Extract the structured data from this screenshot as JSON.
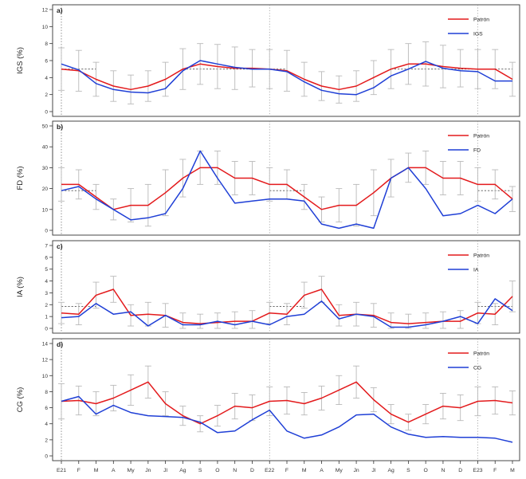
{
  "figure": {
    "x_tick_labels": [
      "E21",
      "F",
      "M",
      "A",
      "My",
      "Jn",
      "Jl",
      "Ag",
      "S",
      "O",
      "N",
      "D",
      "E22",
      "F",
      "M",
      "A",
      "My",
      "Jn",
      "Jl",
      "Ag",
      "S",
      "O",
      "N",
      "D",
      "E23",
      "F",
      "M"
    ],
    "colors": {
      "pattern": "#e31a1c",
      "series": "#1f3fd6",
      "errorbar": "#b9b9b9",
      "reference": "#555555",
      "frame": "#333333"
    }
  },
  "chart_data": [
    {
      "type": "line",
      "panel_label": "a)",
      "ylabel": "IGS (%)",
      "ylim": [
        0,
        12
      ],
      "yticks": [
        0,
        2,
        4,
        6,
        8,
        10,
        12
      ],
      "reference_level": 5,
      "legend_position": "top-right",
      "series": [
        {
          "name": "Patrón",
          "color": "#e31a1c",
          "values": [
            5,
            4.8,
            3.8,
            3.0,
            2.6,
            3.0,
            3.8,
            5.0,
            5.6,
            5.3,
            5.1,
            5.1,
            5.0,
            4.8,
            3.8,
            3.0,
            2.6,
            3.0,
            4.0,
            5.0,
            5.6,
            5.6,
            5.3,
            5.1,
            5.0,
            5.0,
            3.8
          ]
        },
        {
          "name": "IGS",
          "color": "#1f3fd6",
          "values": [
            5.6,
            4.9,
            3.3,
            2.6,
            2.3,
            2.2,
            2.7,
            4.8,
            6.0,
            5.6,
            5.2,
            5.0,
            5.0,
            4.7,
            3.5,
            2.5,
            2.1,
            2.0,
            2.8,
            4.2,
            5.0,
            5.9,
            5.1,
            4.8,
            4.7,
            3.6,
            3.6
          ]
        }
      ],
      "errors": [
        2.5,
        2.4,
        2.0,
        1.8,
        1.7,
        1.8,
        2.0,
        2.4,
        2.4,
        2.6,
        2.5,
        2.2,
        2.3,
        2.4,
        2.0,
        1.7,
        1.6,
        1.8,
        2.0,
        2.3,
        2.4,
        2.6,
        2.5,
        2.2,
        2.3,
        2.3,
        2.0
      ]
    },
    {
      "type": "line",
      "panel_label": "b)",
      "ylabel": "FD (%)",
      "ylim": [
        0,
        50
      ],
      "yticks": [
        0,
        10,
        20,
        30,
        40,
        50
      ],
      "reference_level": 19,
      "legend_position": "top-right",
      "series": [
        {
          "name": "Patrón",
          "color": "#e31a1c",
          "values": [
            22,
            22,
            16,
            10,
            12,
            12,
            18,
            25,
            30,
            30,
            25,
            25,
            22,
            22,
            16,
            10,
            12,
            12,
            18,
            25,
            30,
            30,
            25,
            25,
            22,
            22,
            15
          ]
        },
        {
          "name": "FD",
          "color": "#1f3fd6",
          "values": [
            19,
            21,
            15,
            10,
            5,
            6,
            8,
            20,
            38,
            25,
            13,
            14,
            15,
            15,
            14,
            3,
            1,
            3,
            1,
            25,
            30,
            20,
            7,
            8,
            12,
            8,
            15
          ]
        }
      ],
      "errors": [
        8,
        7,
        6,
        5,
        8,
        10,
        11,
        9,
        8,
        8,
        8,
        8,
        8,
        7,
        6,
        6,
        8,
        10,
        11,
        9,
        7,
        8,
        8,
        8,
        8,
        7,
        6
      ]
    },
    {
      "type": "line",
      "panel_label": "c)",
      "ylabel": "IA (%)",
      "ylim": [
        0,
        7
      ],
      "yticks": [
        0,
        1,
        2,
        3,
        4,
        5,
        6,
        7
      ],
      "reference_level": 1.85,
      "legend_position": "top-right",
      "series": [
        {
          "name": "Patrón",
          "color": "#e31a1c",
          "values": [
            1.3,
            1.2,
            2.8,
            3.3,
            1.1,
            1.2,
            1.1,
            0.5,
            0.4,
            0.5,
            0.6,
            0.6,
            1.3,
            1.2,
            2.8,
            3.3,
            1.1,
            1.2,
            1.1,
            0.5,
            0.4,
            0.5,
            0.6,
            0.6,
            1.3,
            1.2,
            2.7
          ]
        },
        {
          "name": "IA",
          "color": "#1f3fd6",
          "values": [
            0.9,
            1.0,
            2.1,
            1.2,
            1.4,
            0.2,
            1.1,
            0.3,
            0.3,
            0.6,
            0.3,
            0.6,
            0.3,
            1.0,
            1.2,
            2.3,
            0.8,
            1.2,
            1.0,
            0.1,
            0.1,
            0.3,
            0.6,
            1.0,
            0.4,
            2.5,
            1.5
          ]
        }
      ],
      "errors": [
        0.9,
        0.9,
        1.1,
        1.1,
        0.9,
        1.0,
        1.0,
        0.8,
        0.8,
        0.8,
        0.8,
        0.9,
        0.9,
        0.9,
        1.1,
        1.1,
        0.9,
        1.0,
        1.0,
        0.8,
        0.8,
        0.8,
        0.8,
        0.9,
        0.9,
        0.9,
        1.3
      ]
    },
    {
      "type": "line",
      "panel_label": "d)",
      "ylabel": "CG (%)",
      "ylim": [
        0,
        14
      ],
      "yticks": [
        0,
        2,
        4,
        6,
        8,
        10,
        12,
        14
      ],
      "reference_level": null,
      "legend_position": "top-right",
      "series": [
        {
          "name": "Patrón",
          "color": "#e31a1c",
          "values": [
            6.8,
            6.9,
            6.5,
            7.2,
            8.2,
            9.2,
            6.5,
            5.0,
            4.0,
            5.0,
            6.2,
            6.0,
            6.8,
            6.9,
            6.5,
            7.2,
            8.2,
            9.2,
            7.0,
            5.2,
            4.2,
            5.2,
            6.2,
            6.0,
            6.8,
            6.9,
            6.6
          ]
        },
        {
          "name": "CG",
          "color": "#1f3fd6",
          "values": [
            6.8,
            7.4,
            5.2,
            6.3,
            5.4,
            5.0,
            4.9,
            4.8,
            4.2,
            2.9,
            3.1,
            4.5,
            5.7,
            3.1,
            2.2,
            2.6,
            3.6,
            5.1,
            5.2,
            3.6,
            2.7,
            2.3,
            2.4,
            2.3,
            2.3,
            2.2,
            1.7
          ]
        }
      ],
      "errors": [
        2.2,
        1.8,
        1.5,
        1.6,
        1.9,
        2.0,
        1.5,
        1.2,
        1.0,
        1.3,
        1.6,
        1.6,
        1.8,
        1.7,
        1.4,
        1.5,
        1.8,
        2.0,
        1.5,
        1.2,
        1.0,
        1.2,
        1.6,
        1.6,
        1.8,
        1.7,
        1.5
      ]
    }
  ]
}
